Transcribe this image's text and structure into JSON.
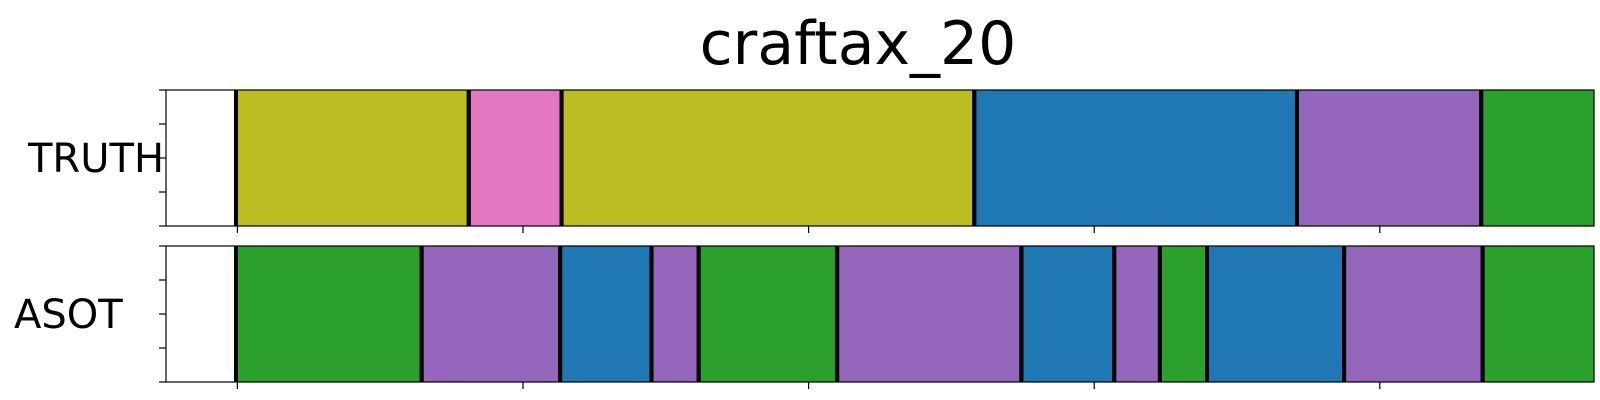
{
  "chart_data": {
    "type": "segmentation-bar",
    "title": "craftax_20",
    "x_range": [
      0,
      100
    ],
    "rows": [
      {
        "label": "TRUTH",
        "segments": [
          {
            "start": 4.9,
            "end": 21.2,
            "color": "#bcbd22"
          },
          {
            "start": 21.2,
            "end": 27.7,
            "color": "#e377c2"
          },
          {
            "start": 27.7,
            "end": 56.6,
            "color": "#bcbd22"
          },
          {
            "start": 56.6,
            "end": 79.2,
            "color": "#1f77b4"
          },
          {
            "start": 79.2,
            "end": 92.1,
            "color": "#9467bd"
          },
          {
            "start": 92.1,
            "end": 104.8,
            "color": "#2ca02c"
          }
        ]
      },
      {
        "label": "ASOT",
        "segments": [
          {
            "start": 4.9,
            "end": 17.9,
            "color": "#2ca02c"
          },
          {
            "start": 17.9,
            "end": 27.6,
            "color": "#9467bd"
          },
          {
            "start": 27.6,
            "end": 34.0,
            "color": "#1f77b4"
          },
          {
            "start": 34.0,
            "end": 37.3,
            "color": "#9467bd"
          },
          {
            "start": 37.3,
            "end": 47.0,
            "color": "#2ca02c"
          },
          {
            "start": 47.0,
            "end": 59.9,
            "color": "#9467bd"
          },
          {
            "start": 59.9,
            "end": 66.4,
            "color": "#1f77b4"
          },
          {
            "start": 66.4,
            "end": 69.6,
            "color": "#9467bd"
          },
          {
            "start": 69.6,
            "end": 72.9,
            "color": "#2ca02c"
          },
          {
            "start": 72.9,
            "end": 82.5,
            "color": "#1f77b4"
          },
          {
            "start": 82.5,
            "end": 92.2,
            "color": "#9467bd"
          },
          {
            "start": 92.2,
            "end": 104.8,
            "color": "#2ca02c"
          }
        ]
      }
    ],
    "x_ticks": [
      5,
      25,
      45,
      65,
      85,
      105
    ],
    "y_ticks_per_row": 5,
    "grid": false
  }
}
